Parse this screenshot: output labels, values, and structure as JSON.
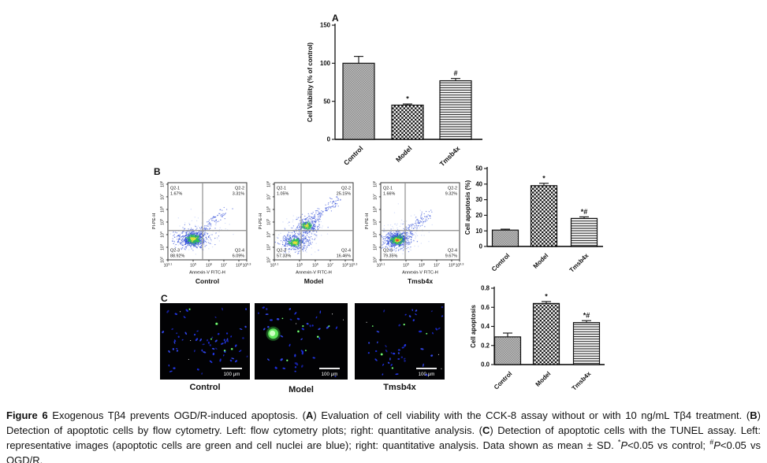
{
  "figure": {
    "caption_segments": [
      {
        "t": "Figure 6",
        "b": true
      },
      {
        "t": " Exogenous Tβ4 prevents OGD/R-induced apoptosis. ("
      },
      {
        "t": "A",
        "b": true
      },
      {
        "t": ") Evaluation of cell viability with the CCK-8 assay without or with 10 ng/mL Tβ4 treatment. ("
      },
      {
        "t": "B",
        "b": true
      },
      {
        "t": ") Detection of apoptotic cells by flow cytometry. Left: flow cytometry plots; right: quantitative analysis. ("
      },
      {
        "t": "C",
        "b": true
      },
      {
        "t": ") Detection of apoptotic cells with the TUNEL assay. Left: representative images (apoptotic cells are green and cell nuclei are blue); right: quantitative analysis. Data shown as mean ± SD. "
      },
      {
        "t": "*",
        "sup": true
      },
      {
        "t": "P",
        "i": true
      },
      {
        "t": "<0.05 vs control; "
      },
      {
        "t": "#",
        "sup": true
      },
      {
        "t": "P",
        "i": true
      },
      {
        "t": "<0.05 vs OGD/R."
      }
    ]
  },
  "panels": {
    "A": {
      "label": "A"
    },
    "B": {
      "label": "B"
    },
    "C": {
      "label": "C",
      "images": [
        {
          "title": "Control",
          "scalebar": "100 μm"
        },
        {
          "title": "Model",
          "scalebar": "100 μm"
        },
        {
          "title": "Tmsb4x",
          "scalebar": "100 μm"
        }
      ]
    }
  },
  "chart_data": [
    {
      "id": "A-cell-viability",
      "type": "bar",
      "panel": "A",
      "categories": [
        "Control",
        "Model",
        "Tmsb4x"
      ],
      "values": [
        100,
        45,
        77
      ],
      "errors": [
        9,
        1.5,
        3
      ],
      "sig_labels": [
        "",
        "*",
        "#"
      ],
      "ylabel": "Cell Viability (% of control)",
      "ylim": [
        0,
        150
      ],
      "yticks": [
        "0",
        "50",
        "100",
        "150"
      ]
    },
    {
      "id": "B-flow-control",
      "type": "scatter-flow",
      "panel": "B",
      "title": "Control",
      "xlabel": "Annexin-V FITC-H",
      "ylabel": "PI-PE-H",
      "x_tick_exponents": [
        "3.1",
        "5",
        "6",
        "7",
        "8",
        "9.3"
      ],
      "y_tick_exponents": [
        "2",
        "3",
        "4",
        "5",
        "6",
        "7",
        "8"
      ],
      "quadrants": [
        {
          "name": "Q2-1",
          "value": "1.67%"
        },
        {
          "name": "Q2-2",
          "value": "3.31%"
        },
        {
          "name": "Q2-3",
          "value": "88.92%"
        },
        {
          "name": "Q2-4",
          "value": "6.09%"
        }
      ]
    },
    {
      "id": "B-flow-model",
      "type": "scatter-flow",
      "panel": "B",
      "title": "Model",
      "xlabel": "Annexin-V FITC-H",
      "ylabel": "PI-PE-H",
      "x_tick_exponents": [
        "3.1",
        "5",
        "6",
        "7",
        "8",
        "9.3"
      ],
      "y_tick_exponents": [
        "2",
        "3",
        "4",
        "5",
        "6",
        "7",
        "8"
      ],
      "quadrants": [
        {
          "name": "Q2-1",
          "value": "1.05%"
        },
        {
          "name": "Q2-2",
          "value": "25.15%"
        },
        {
          "name": "Q2-3",
          "value": "57.33%"
        },
        {
          "name": "Q2-4",
          "value": "16.46%"
        }
      ]
    },
    {
      "id": "B-flow-tmsb4x",
      "type": "scatter-flow",
      "panel": "B",
      "title": "Tmsb4x",
      "xlabel": "Annexin-V FITC-H",
      "ylabel": "PI-PE-H",
      "x_tick_exponents": [
        "3.1",
        "5",
        "6",
        "7",
        "8",
        "9.3"
      ],
      "y_tick_exponents": [
        "2",
        "3",
        "4",
        "5",
        "6",
        "7",
        "8"
      ],
      "quadrants": [
        {
          "name": "Q2-1",
          "value": "1.66%"
        },
        {
          "name": "Q2-2",
          "value": "9.32%"
        },
        {
          "name": "Q2-3",
          "value": "79.35%"
        },
        {
          "name": "Q2-4",
          "value": "9.67%"
        }
      ]
    },
    {
      "id": "B-cell-apoptosis-pct",
      "type": "bar",
      "panel": "B",
      "categories": [
        "Control",
        "Model",
        "Tmsb4x"
      ],
      "values": [
        10.5,
        39,
        18
      ],
      "errors": [
        0.6,
        1.5,
        1
      ],
      "sig_labels": [
        "",
        "*",
        "*#"
      ],
      "ylabel": "Cell apoptosis (%)",
      "ylim": [
        0,
        50
      ],
      "yticks": [
        "0",
        "10",
        "20",
        "30",
        "40",
        "50"
      ]
    },
    {
      "id": "C-cell-apoptosis-index",
      "type": "bar",
      "panel": "C",
      "categories": [
        "Control",
        "Model",
        "Tmsb4x"
      ],
      "values": [
        0.29,
        0.64,
        0.44
      ],
      "errors": [
        0.04,
        0.02,
        0.02
      ],
      "sig_labels": [
        "",
        "*",
        "*#"
      ],
      "ylabel": "Cell apoptosis",
      "ylim": [
        0,
        0.8
      ],
      "yticks": [
        "0.0",
        "0.2",
        "0.4",
        "0.6",
        "0.8"
      ]
    }
  ],
  "colors": {
    "scatter_blue": "#2443d6",
    "scatter_light_blue": "#7d9cf2",
    "scatter_green": "#2fca4c",
    "scatter_yellow": "#e7e03c",
    "scatter_red": "#e2492c",
    "nuclei_blue": "#2438ea",
    "tunel_green": "#45e44d",
    "image_background": "#020204"
  }
}
